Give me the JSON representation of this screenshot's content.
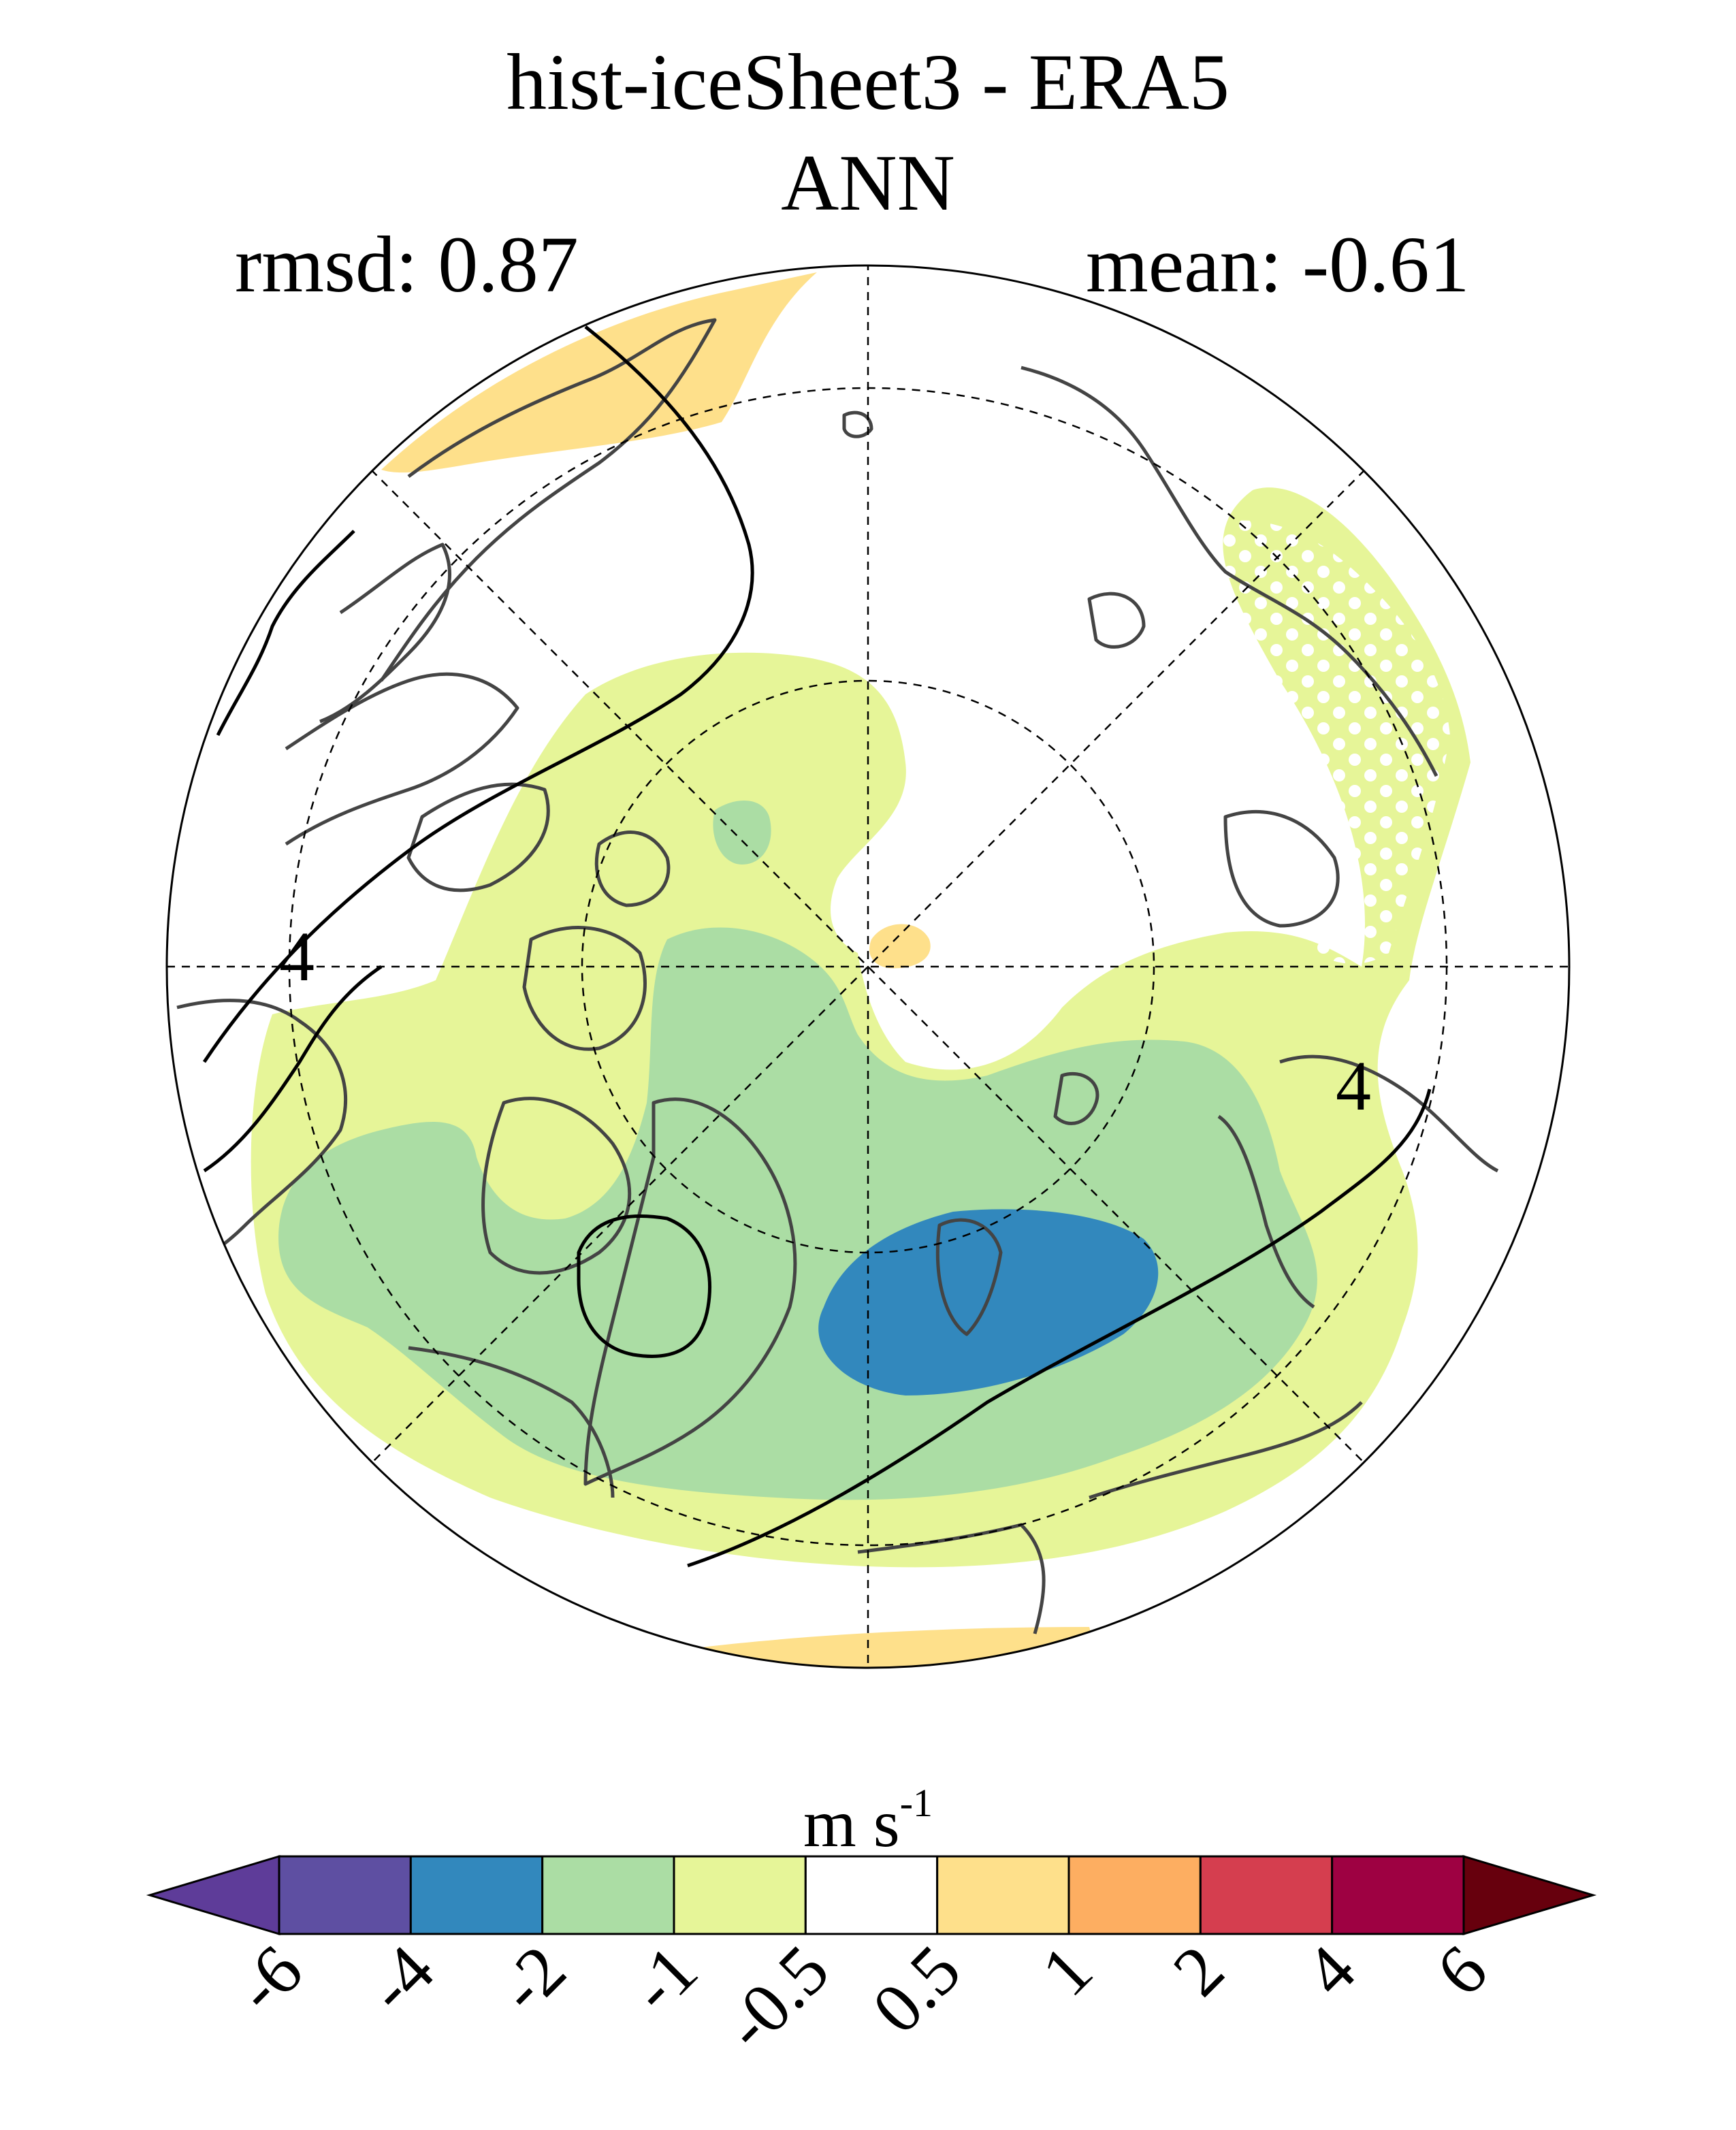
{
  "title": "hist-iceSheet3 - ERA5",
  "subtitle": "ANN",
  "stats": {
    "rmsd": "rmsd: 0.87",
    "mean": "mean: -0.61"
  },
  "colorbar": {
    "units_base": "m s",
    "units_exp": "-1",
    "tick_labels": [
      "-6",
      "-4",
      "-2",
      "-1",
      "-0.5",
      "0.5",
      "1",
      "2",
      "4",
      "6"
    ],
    "colors": [
      "#5e3c99",
      "#5e4fa2",
      "#3288bd",
      "#abdda4",
      "#e6f598",
      "#ffffff",
      "#fee08b",
      "#fdae61",
      "#d53e4f",
      "#9e0142",
      "#67000d"
    ]
  },
  "map": {
    "projection": "north-polar-stereographic",
    "contour_label": "4",
    "colors": {
      "ocean_land_bg": "#ffffff",
      "coast": "#444444",
      "contour": "#000000",
      "stipple": "#ffffff"
    }
  }
}
